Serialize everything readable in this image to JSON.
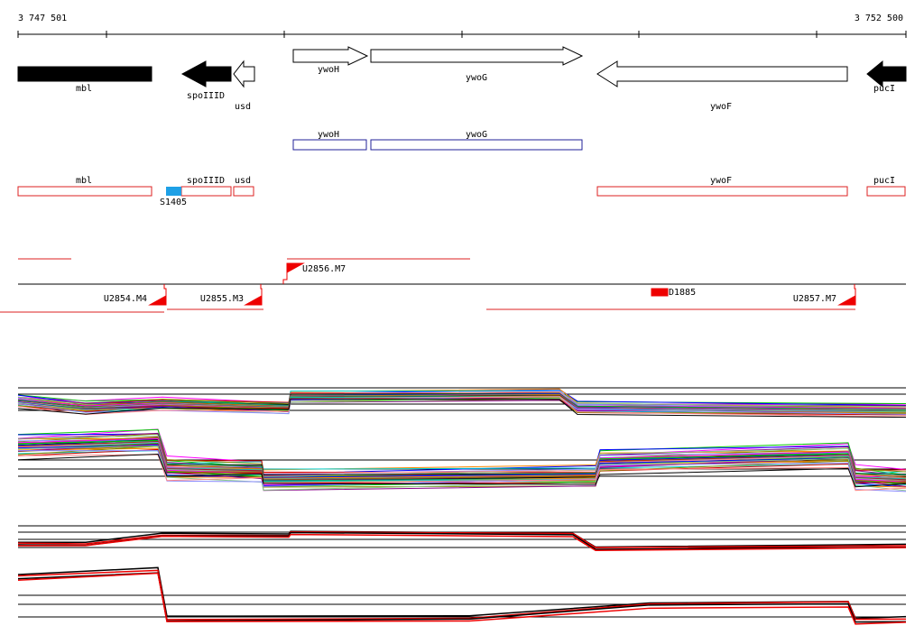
{
  "axis": {
    "start_label": "3 747 501",
    "end_label": "3 752 500"
  },
  "genes": [
    "mbl",
    "spoIIID",
    "usd",
    "ywoH",
    "ywoG",
    "ywoF",
    "pucI"
  ],
  "transcripts": [
    "ywoH",
    "ywoG"
  ],
  "annotations": [
    "mbl",
    "spoIIID",
    "usd",
    "ywoF",
    "pucI",
    "S1405"
  ],
  "regulatory": [
    "U2856.M7",
    "U2854.M4",
    "U2855.M3",
    "D1885",
    "U2857.M7"
  ]
}
